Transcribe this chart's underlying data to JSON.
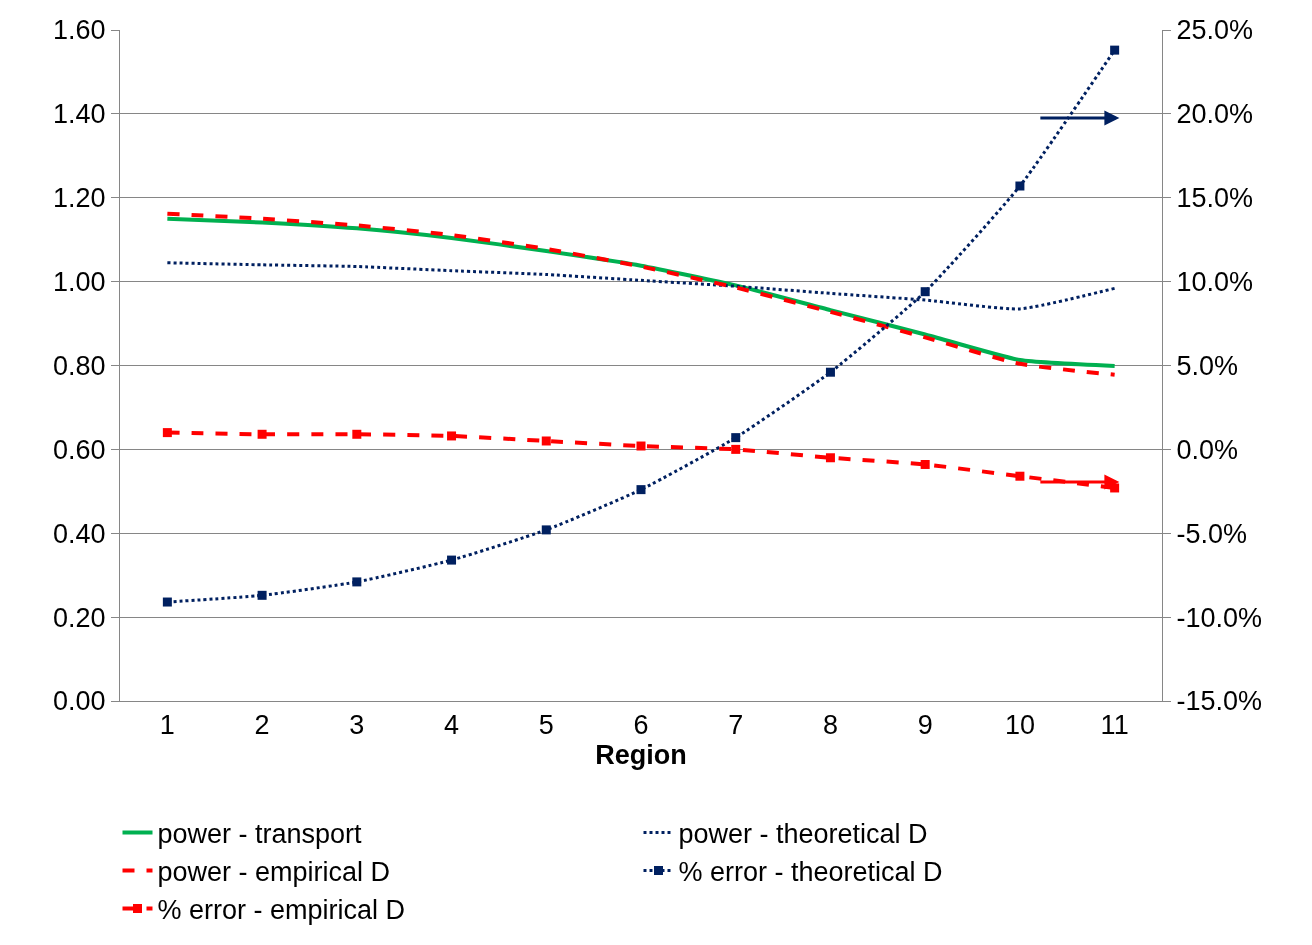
{
  "chart_data": {
    "type": "line",
    "xlabel": "Region",
    "categories": [
      "1",
      "2",
      "3",
      "4",
      "5",
      "6",
      "7",
      "8",
      "9",
      "10",
      "11"
    ],
    "series": [
      {
        "name": "power - transport",
        "color": "#00b050",
        "line_style": "solid",
        "marker": "none",
        "values": [
          1.15,
          1.141,
          1.127,
          1.104,
          1.073,
          1.038,
          0.991,
          0.932,
          0.874,
          0.813,
          0.799
        ]
      },
      {
        "name": "power - theoretical D",
        "color": "#002060",
        "line_style": "dotted",
        "marker": "none",
        "values": [
          1.045,
          1.04,
          1.036,
          1.026,
          1.017,
          1.003,
          0.989,
          0.972,
          0.956,
          0.935,
          0.984
        ]
      },
      {
        "name": "power - empirical D",
        "color": "#ff0000",
        "line_style": "dashed",
        "marker": "none",
        "values": [
          1.162,
          1.15,
          1.134,
          1.111,
          1.078,
          1.036,
          0.986,
          0.928,
          0.867,
          0.804,
          0.778
        ]
      },
      {
        "name": "% error - theoretical D",
        "color": "#002060",
        "line_style": "dotted",
        "marker": "square",
        "axis": "y2",
        "values": [
          -9.1,
          -8.7,
          -7.9,
          -6.6,
          -4.8,
          -2.4,
          0.7,
          4.6,
          9.4,
          15.7,
          23.8
        ]
      },
      {
        "name": "% error - empirical D",
        "color": "#ff0000",
        "line_style": "dashed",
        "marker": "square",
        "axis": "y2",
        "values": [
          1.0,
          0.9,
          0.9,
          0.8,
          0.5,
          0.2,
          0.0,
          -0.5,
          -0.9,
          -1.6,
          -2.3
        ]
      }
    ],
    "ylim": [
      0,
      1.6
    ],
    "yticks": [
      {
        "value": 0,
        "label": "0.00"
      },
      {
        "value": 0.2,
        "label": "0.20"
      },
      {
        "value": 0.4,
        "label": "0.40"
      },
      {
        "value": 0.6,
        "label": "0.60"
      },
      {
        "value": 0.8,
        "label": "0.80"
      },
      {
        "value": 1.0,
        "label": "1.00"
      },
      {
        "value": 1.2,
        "label": "1.20"
      },
      {
        "value": 1.4,
        "label": "1.40"
      },
      {
        "value": 1.6,
        "label": "1.60"
      }
    ],
    "y2lim": [
      -15,
      25
    ],
    "y2ticks": [
      {
        "value": -15,
        "label": "-15.0%"
      },
      {
        "value": -10,
        "label": "-10.0%"
      },
      {
        "value": -5,
        "label": "-5.0%"
      },
      {
        "value": 0,
        "label": "0.0%"
      },
      {
        "value": 5,
        "label": "5.0%"
      },
      {
        "value": 10,
        "label": "10.0%"
      },
      {
        "value": 15,
        "label": "15.0%"
      },
      {
        "value": 20,
        "label": "20.0%"
      },
      {
        "value": 25,
        "label": "25.0%"
      }
    ],
    "grid": "y",
    "legend": "bottom"
  }
}
